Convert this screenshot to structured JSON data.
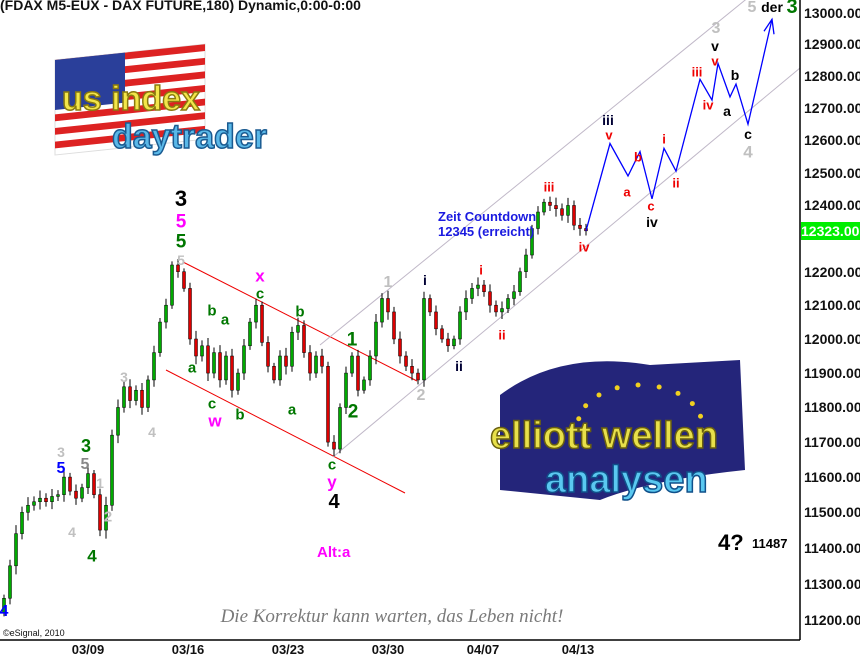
{
  "header": {
    "title": "(FDAX M5-EUX - DAX FUTURE,180) Dynamic,0:00-0:00"
  },
  "logos": {
    "us": {
      "line1": "us index",
      "line2": "daytrader"
    },
    "eu": {
      "line1": "elliott wellen",
      "line2": "analysen"
    }
  },
  "chart_data": {
    "type": "candlestick",
    "scale": "log",
    "ylim": [
      11200,
      13000
    ],
    "yticks": [
      "13000.00",
      "12900.00",
      "12800.00",
      "12700.00",
      "12600.00",
      "12500.00",
      "12400.00",
      "12200.00",
      "12100.00",
      "12000.00",
      "11900.00",
      "11800.00",
      "11700.00",
      "11600.00",
      "11500.00",
      "11400.00",
      "11300.00",
      "11200.00"
    ],
    "xticks": [
      "03/09",
      "03/16",
      "03/23",
      "03/30",
      "04/07",
      "04/13"
    ],
    "last_price": "12323.00",
    "colors": {
      "up": "#00aa00",
      "down": "#dd0000",
      "projection": "#0000ff",
      "red_channel": "#ee0000",
      "gray_channel": "#c0b8c8",
      "last_price_bg": "#00ee00"
    },
    "closes": [
      11260,
      11350,
      11440,
      11500,
      11520,
      11530,
      11540,
      11530,
      11545,
      11550,
      11600,
      11560,
      11540,
      11570,
      11610,
      11550,
      11450,
      11520,
      11720,
      11800,
      11860,
      11820,
      11850,
      11800,
      11880,
      11960,
      12050,
      12100,
      12220,
      12200,
      12150,
      12000,
      11950,
      11980,
      11900,
      11960,
      11880,
      11950,
      11850,
      11900,
      11980,
      12050,
      12100,
      11990,
      11920,
      11880,
      11950,
      11920,
      12020,
      12040,
      11960,
      11900,
      11950,
      11920,
      11700,
      11680,
      11800,
      11900,
      11950,
      11850,
      11880,
      11950,
      12050,
      12120,
      12080,
      12000,
      11950,
      11920,
      11900,
      11880,
      12120,
      12080,
      12030,
      12000,
      11980,
      12000,
      12080,
      12120,
      12150,
      12160,
      12140,
      12100,
      12080,
      12090,
      12120,
      12140,
      12200,
      12250,
      12330,
      12380,
      12410,
      12400,
      12390,
      12370,
      12400,
      12340,
      12330,
      12323
    ],
    "projection": [
      [
        97,
        12323
      ],
      [
        101,
        12590
      ],
      [
        104,
        12490
      ],
      [
        106,
        12565
      ],
      [
        108,
        12420
      ],
      [
        110,
        12575
      ],
      [
        112,
        12505
      ],
      [
        116,
        12790
      ],
      [
        118,
        12725
      ],
      [
        119,
        12840
      ],
      [
        121,
        12735
      ],
      [
        122,
        12775
      ],
      [
        124,
        12650
      ],
      [
        128,
        12980
      ]
    ],
    "annotations": [
      {
        "text": "3",
        "color": "#000000"
      },
      {
        "text": "5",
        "color": "#ff00ff"
      },
      {
        "text": "5",
        "color": "#007700"
      },
      {
        "text": "5",
        "color": "#c0c0c0"
      },
      {
        "text": "x",
        "color": "#ff00ff"
      },
      {
        "text": "c",
        "color": "#007700"
      },
      {
        "text": "b",
        "color": "#007700"
      },
      {
        "text": "a",
        "color": "#007700"
      },
      {
        "text": "a",
        "color": "#007700"
      },
      {
        "text": "c",
        "color": "#007700"
      },
      {
        "text": "w",
        "color": "#ff00ff"
      },
      {
        "text": "b",
        "color": "#007700"
      },
      {
        "text": "a",
        "color": "#007700"
      },
      {
        "text": "b",
        "color": "#007700"
      },
      {
        "text": "1",
        "color": "#007700"
      },
      {
        "text": "2",
        "color": "#007700"
      },
      {
        "text": "c",
        "color": "#007700"
      },
      {
        "text": "y",
        "color": "#ff00ff"
      },
      {
        "text": "4",
        "color": "#000000"
      },
      {
        "text": "1",
        "color": "#c0c0c0"
      },
      {
        "text": "i",
        "color": "#000033"
      },
      {
        "text": "2",
        "color": "#c0c0c0"
      },
      {
        "text": "ii",
        "color": "#000033"
      },
      {
        "text": "i",
        "color": "#ee0000"
      },
      {
        "text": "ii",
        "color": "#ee0000"
      },
      {
        "text": "iii",
        "color": "#ee0000"
      },
      {
        "text": "iv",
        "color": "#ee0000"
      },
      {
        "text": "iii",
        "color": "#000033"
      },
      {
        "text": "v",
        "color": "#ee0000"
      },
      {
        "text": "a",
        "color": "#ee0000"
      },
      {
        "text": "b",
        "color": "#ee0000"
      },
      {
        "text": "c",
        "color": "#ee0000"
      },
      {
        "text": "iv",
        "color": "#000000"
      },
      {
        "text": "i",
        "color": "#ee0000"
      },
      {
        "text": "ii",
        "color": "#ee0000"
      },
      {
        "text": "iii",
        "color": "#ee0000"
      },
      {
        "text": "iv",
        "color": "#ee0000"
      },
      {
        "text": "3",
        "color": "#c0c0c0"
      },
      {
        "text": "v",
        "color": "#000000"
      },
      {
        "text": "v",
        "color": "#ee0000"
      },
      {
        "text": "b",
        "color": "#000000"
      },
      {
        "text": "a",
        "color": "#000000"
      },
      {
        "text": "c",
        "color": "#000000"
      },
      {
        "text": "4",
        "color": "#c0c0c0"
      },
      {
        "text": "5",
        "color": "#c0c0c0"
      },
      {
        "text": "der",
        "color": "#000000"
      },
      {
        "text": "3",
        "color": "#007700"
      },
      {
        "text": "3",
        "color": "#c0c0c0"
      },
      {
        "text": "5",
        "color": "#0000ff"
      },
      {
        "text": "3",
        "color": "#007700"
      },
      {
        "text": "5",
        "color": "#888888"
      },
      {
        "text": "1",
        "color": "#c0c0c0"
      },
      {
        "text": "2",
        "color": "#c0c0c0"
      },
      {
        "text": "4",
        "color": "#c0c0c0"
      },
      {
        "text": "4",
        "color": "#007700"
      },
      {
        "text": "4",
        "color": "#c0c0c0"
      },
      {
        "text": "3",
        "color": "#c0c0c0"
      },
      {
        "text": "4",
        "color": "#0000ff"
      }
    ],
    "notes": {
      "zeit_line1": "Zeit Countdown",
      "zeit_line2": "12345 (erreicht)",
      "alt": "Alt:a",
      "target_label": "4?",
      "target_value": "11487"
    }
  },
  "footer": {
    "motto": "Die Korrektur kann warten, das Leben nicht!",
    "copyright": "©eSignal, 2010"
  }
}
